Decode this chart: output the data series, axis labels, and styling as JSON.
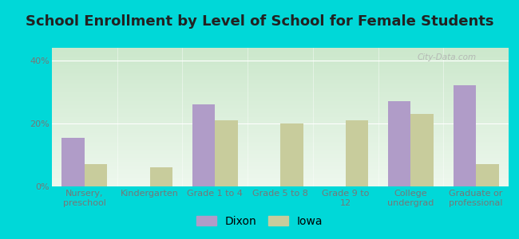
{
  "title": "School Enrollment by Level of School for Female Students",
  "categories": [
    "Nursery,\npreschool",
    "Kindergarten",
    "Grade 1 to 4",
    "Grade 5 to 8",
    "Grade 9 to\n12",
    "College\nundergrad",
    "Graduate or\nprofessional"
  ],
  "dixon": [
    15.5,
    0.0,
    26.0,
    0.0,
    0.0,
    27.0,
    32.0
  ],
  "iowa": [
    7.0,
    6.0,
    21.0,
    20.0,
    21.0,
    23.0,
    7.0
  ],
  "dixon_color": "#b09cc8",
  "iowa_color": "#c8cc9c",
  "background_outer": "#00d8d8",
  "background_inner_top": "#cce8cc",
  "background_inner_bottom": "#eef8ee",
  "yticks": [
    0,
    20,
    40
  ],
  "ylim": [
    0,
    44
  ],
  "legend_labels": [
    "Dixon",
    "Iowa"
  ],
  "bar_width": 0.35,
  "title_fontsize": 13,
  "tick_fontsize": 8,
  "legend_fontsize": 10
}
